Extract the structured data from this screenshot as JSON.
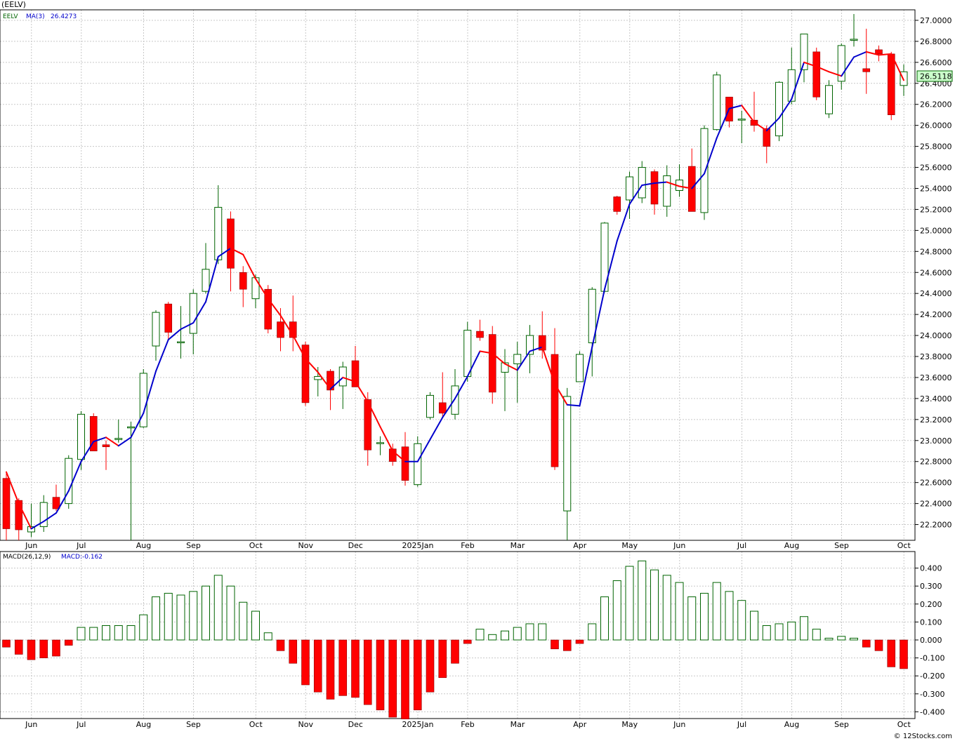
{
  "symbol_label": "(EELV)",
  "legend": {
    "symbol": "EELV",
    "ma_label": "MA(3)",
    "ma_value": "26.4273",
    "macd_label": "MACD(26,12,9)",
    "macd_value": "MACD:-0.162"
  },
  "last_price_label": "26.5118",
  "footer": "© 12Stocks.com",
  "colors": {
    "up": "#006400",
    "down": "#ff0000",
    "ma_up": "#0000cc",
    "ma_down": "#ff0000",
    "grid": "#c8c8c8",
    "price_box": "#ccffcc"
  },
  "chart_data": [
    {
      "type": "candlestick",
      "ylim": [
        22.05,
        27.1
      ],
      "yticks": [
        "27.0000",
        "26.8000",
        "26.6000",
        "26.4000",
        "26.2000",
        "26.0000",
        "25.8000",
        "25.6000",
        "25.4000",
        "25.2000",
        "25.0000",
        "24.8000",
        "24.6000",
        "24.4000",
        "24.2000",
        "24.0000",
        "23.8000",
        "23.6000",
        "23.4000",
        "23.2000",
        "23.0000",
        "22.8000",
        "22.6000",
        "22.4000",
        "22.2000"
      ],
      "xticks": [
        {
          "label": "Jun",
          "index": 1
        },
        {
          "label": "Jul",
          "index": 5
        },
        {
          "label": "Aug",
          "index": 10
        },
        {
          "label": "Sep",
          "index": 14
        },
        {
          "label": "Oct",
          "index": 19
        },
        {
          "label": "Nov",
          "index": 23
        },
        {
          "label": "Dec",
          "index": 27
        },
        {
          "label": "2025Jan",
          "index": 32
        },
        {
          "label": "Feb",
          "index": 36
        },
        {
          "label": "Mar",
          "index": 40
        },
        {
          "label": "Apr",
          "index": 45
        },
        {
          "label": "May",
          "index": 49
        },
        {
          "label": "Jun",
          "index": 53
        },
        {
          "label": "Jul",
          "index": 58
        },
        {
          "label": "Aug",
          "index": 62
        },
        {
          "label": "Sep",
          "index": 66
        },
        {
          "label": "Oct",
          "index": 71
        }
      ],
      "ohlc": [
        [
          22.64,
          22.7,
          22.05,
          22.16
        ],
        [
          22.43,
          22.45,
          22.05,
          22.15
        ],
        [
          22.13,
          22.4,
          22.08,
          22.18
        ],
        [
          22.18,
          22.48,
          22.13,
          22.41
        ],
        [
          22.46,
          22.58,
          22.33,
          22.35
        ],
        [
          22.4,
          22.86,
          22.35,
          22.83
        ],
        [
          22.82,
          23.28,
          22.72,
          23.25
        ],
        [
          23.23,
          23.26,
          22.9,
          22.9
        ],
        [
          22.96,
          23.0,
          22.72,
          22.94
        ],
        [
          23.02,
          23.2,
          22.98,
          23.02
        ],
        [
          23.12,
          23.18,
          22.05,
          23.13
        ],
        [
          23.13,
          23.68,
          23.12,
          23.64
        ],
        [
          23.9,
          24.24,
          23.76,
          24.22
        ],
        [
          24.3,
          24.32,
          23.96,
          24.03
        ],
        [
          23.94,
          24.28,
          23.78,
          23.94
        ],
        [
          24.02,
          24.44,
          23.82,
          24.4
        ],
        [
          24.42,
          24.88,
          24.4,
          24.63
        ],
        [
          24.72,
          25.43,
          24.68,
          25.22
        ],
        [
          25.11,
          25.18,
          24.42,
          24.64
        ],
        [
          24.6,
          24.66,
          24.27,
          24.44
        ],
        [
          24.35,
          24.58,
          24.26,
          24.55
        ],
        [
          24.44,
          24.48,
          24.02,
          24.06
        ],
        [
          24.13,
          24.26,
          23.85,
          23.98
        ],
        [
          24.13,
          24.38,
          23.85,
          23.98
        ],
        [
          23.91,
          23.94,
          23.33,
          23.36
        ],
        [
          23.58,
          23.7,
          23.42,
          23.61
        ],
        [
          23.66,
          23.68,
          23.29,
          23.48
        ],
        [
          23.52,
          23.75,
          23.3,
          23.7
        ],
        [
          23.76,
          23.9,
          23.51,
          23.51
        ],
        [
          23.39,
          23.46,
          22.76,
          22.91
        ],
        [
          22.98,
          23.04,
          22.86,
          22.98
        ],
        [
          22.92,
          22.97,
          22.76,
          22.8
        ],
        [
          22.94,
          23.08,
          22.57,
          22.62
        ],
        [
          22.58,
          23.04,
          22.56,
          22.97
        ],
        [
          23.22,
          23.46,
          23.2,
          23.43
        ],
        [
          23.36,
          23.65,
          23.23,
          23.26
        ],
        [
          23.25,
          23.68,
          23.2,
          23.52
        ],
        [
          23.61,
          24.13,
          23.56,
          24.05
        ],
        [
          24.04,
          24.15,
          23.95,
          23.98
        ],
        [
          24.01,
          24.09,
          23.35,
          23.46
        ],
        [
          23.65,
          23.87,
          23.28,
          23.74
        ],
        [
          23.73,
          23.94,
          23.36,
          23.82
        ],
        [
          23.82,
          24.1,
          23.64,
          24.0
        ],
        [
          24.0,
          24.23,
          23.78,
          23.86
        ],
        [
          23.82,
          24.07,
          22.72,
          22.75
        ],
        [
          22.33,
          23.5,
          22.05,
          23.42
        ],
        [
          23.56,
          23.85,
          23.56,
          23.82
        ],
        [
          23.93,
          24.46,
          23.61,
          24.44
        ],
        [
          24.42,
          25.08,
          24.41,
          25.07
        ],
        [
          25.32,
          25.33,
          25.15,
          25.18
        ],
        [
          25.29,
          25.56,
          25.11,
          25.51
        ],
        [
          25.31,
          25.66,
          25.26,
          25.6
        ],
        [
          25.56,
          25.58,
          25.15,
          25.25
        ],
        [
          25.23,
          25.62,
          25.13,
          25.52
        ],
        [
          25.38,
          25.63,
          25.32,
          25.48
        ],
        [
          25.61,
          25.78,
          25.19,
          25.18
        ],
        [
          25.17,
          26.0,
          25.1,
          25.97
        ],
        [
          25.96,
          26.51,
          25.95,
          26.48
        ],
        [
          26.27,
          26.27,
          25.98,
          26.04
        ],
        [
          26.05,
          26.14,
          25.83,
          26.06
        ],
        [
          26.05,
          26.32,
          25.94,
          26.0
        ],
        [
          25.97,
          26.0,
          25.64,
          25.8
        ],
        [
          25.9,
          26.42,
          25.85,
          26.41
        ],
        [
          26.23,
          26.74,
          26.2,
          26.53
        ],
        [
          26.53,
          26.87,
          26.41,
          26.87
        ],
        [
          26.7,
          26.74,
          26.24,
          26.27
        ],
        [
          26.11,
          26.43,
          26.07,
          26.38
        ],
        [
          26.42,
          26.78,
          26.34,
          26.76
        ],
        [
          26.82,
          27.06,
          26.75,
          26.82
        ],
        [
          26.54,
          26.92,
          26.3,
          26.51
        ],
        [
          26.72,
          26.76,
          26.61,
          26.68
        ],
        [
          26.68,
          26.7,
          26.05,
          26.1
        ],
        [
          26.38,
          26.58,
          26.28,
          26.51
        ]
      ],
      "ma3": [
        22.7,
        22.4,
        22.16,
        22.23,
        22.31,
        22.52,
        22.8,
        22.99,
        23.03,
        22.95,
        23.03,
        23.26,
        23.66,
        23.96,
        24.06,
        24.12,
        24.32,
        24.75,
        24.83,
        24.77,
        24.54,
        24.35,
        24.19,
        24.0,
        23.78,
        23.65,
        23.49,
        23.6,
        23.56,
        23.37,
        23.13,
        22.9,
        22.8,
        22.8,
        23.01,
        23.22,
        23.4,
        23.61,
        23.85,
        23.83,
        23.73,
        23.67,
        23.85,
        23.89,
        23.54,
        23.34,
        23.33,
        23.89,
        24.44,
        24.9,
        25.25,
        25.43,
        25.45,
        25.46,
        25.42,
        25.4,
        25.54,
        25.88,
        26.16,
        26.19,
        26.03,
        25.95,
        26.07,
        26.25,
        26.6,
        26.56,
        26.51,
        26.47,
        26.65,
        26.7,
        26.67,
        26.68,
        26.43
      ],
      "ma_direction": [
        "up",
        "down",
        "down",
        "up",
        "up",
        "up",
        "up",
        "up",
        "up",
        "down",
        "up",
        "up",
        "up",
        "up",
        "up",
        "up",
        "up",
        "up",
        "up",
        "down",
        "down",
        "down",
        "down",
        "down",
        "down",
        "down",
        "down",
        "up",
        "down",
        "down",
        "down",
        "down",
        "down",
        "up",
        "up",
        "up",
        "up",
        "up",
        "up",
        "down",
        "down",
        "down",
        "up",
        "up",
        "down",
        "down",
        "up",
        "up",
        "up",
        "up",
        "up",
        "up",
        "up",
        "up",
        "down",
        "down",
        "up",
        "up",
        "up",
        "up",
        "down",
        "down",
        "up",
        "up",
        "up",
        "down",
        "down",
        "down",
        "up",
        "up",
        "down",
        "down",
        "down"
      ]
    },
    {
      "type": "bar",
      "ylim": [
        -0.44,
        0.44
      ],
      "yticks": [
        "0.400",
        "0.300",
        "0.200",
        "0.100",
        "0.000",
        "-0.100",
        "-0.200",
        "-0.300",
        "-0.400"
      ],
      "values": [
        -0.04,
        -0.08,
        -0.11,
        -0.1,
        -0.09,
        -0.03,
        0.07,
        0.07,
        0.08,
        0.08,
        0.08,
        0.14,
        0.24,
        0.26,
        0.25,
        0.27,
        0.3,
        0.36,
        0.3,
        0.21,
        0.16,
        0.04,
        -0.06,
        -0.13,
        -0.25,
        -0.29,
        -0.33,
        -0.31,
        -0.32,
        -0.36,
        -0.39,
        -0.43,
        -0.44,
        -0.39,
        -0.29,
        -0.21,
        -0.13,
        -0.02,
        0.06,
        0.03,
        0.05,
        0.07,
        0.09,
        0.09,
        -0.05,
        -0.06,
        -0.02,
        0.09,
        0.24,
        0.33,
        0.41,
        0.44,
        0.39,
        0.36,
        0.32,
        0.24,
        0.26,
        0.32,
        0.27,
        0.22,
        0.16,
        0.08,
        0.09,
        0.1,
        0.13,
        0.06,
        0.01,
        0.02,
        0.01,
        -0.04,
        -0.06,
        -0.15,
        -0.16
      ]
    }
  ]
}
